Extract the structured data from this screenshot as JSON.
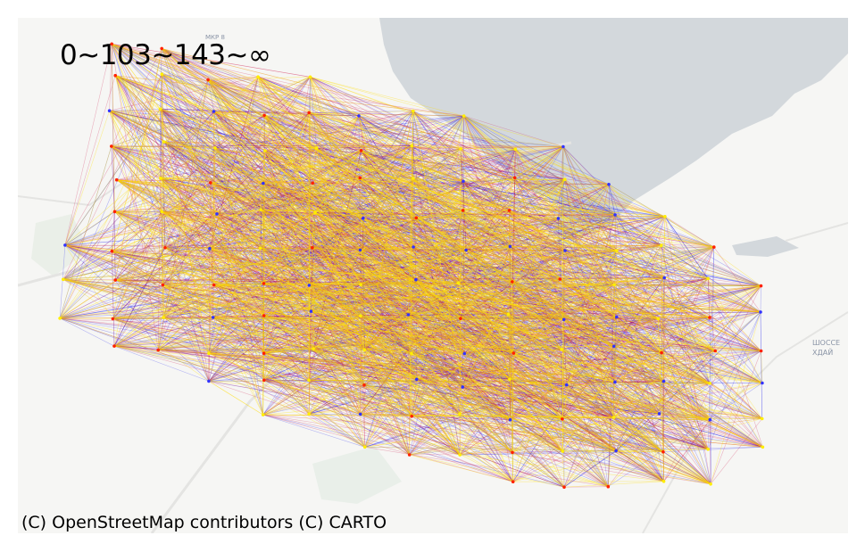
{
  "legend": {
    "label": "0~103~143~∞"
  },
  "attribution": {
    "text": "(C) OpenStreetMap contributors (C) CARTO"
  },
  "basemap": {
    "place_labels": [
      "МКР 8",
      "ШОССЕ",
      "ХДАЙ"
    ],
    "water_color": "#d3d8dc",
    "land_color": "#f6f6f4"
  },
  "network": {
    "edge_colors": [
      "#2222ee",
      "#cc1144",
      "#ffdd00"
    ],
    "node_colors": [
      "#3333ff",
      "#ff2200",
      "#ffee00"
    ]
  }
}
